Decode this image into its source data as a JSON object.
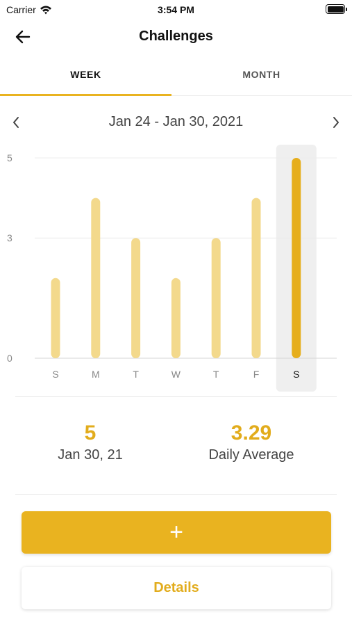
{
  "status_bar": {
    "carrier": "Carrier",
    "time": "3:54 PM",
    "wifi_icon": "wifi-icon",
    "battery_icon": "battery-icon",
    "battery_level": 1.0
  },
  "nav": {
    "title": "Challenges",
    "back_icon": "arrow-left-icon"
  },
  "tabs": [
    {
      "label": "WEEK",
      "selected": true
    },
    {
      "label": "MONTH",
      "selected": false
    }
  ],
  "date_nav": {
    "range": "Jan 24 - Jan 30, 2021",
    "prev_icon": "chevron-left-icon",
    "next_icon": "chevron-right-icon"
  },
  "chart_data": {
    "type": "bar",
    "categories": [
      "S",
      "M",
      "T",
      "W",
      "T",
      "F",
      "S"
    ],
    "values": [
      2,
      4,
      3,
      2,
      3,
      4,
      5
    ],
    "selected_index": 6,
    "ylim": [
      0,
      5
    ],
    "yticks": [
      0,
      3,
      5
    ],
    "grid": true,
    "colors": {
      "bar": "#f3d98c",
      "bar_selected": "#e6ae1c",
      "highlight_bg": "#efefef",
      "grid": "#ececec"
    }
  },
  "stats": {
    "selected_value": "5",
    "selected_date": "Jan 30, 21",
    "average_value": "3.29",
    "average_label": "Daily Average"
  },
  "buttons": {
    "add_label": "+",
    "details_label": "Details"
  },
  "colors": {
    "accent": "#e9b320",
    "accent_text": "#e2ac1c"
  }
}
